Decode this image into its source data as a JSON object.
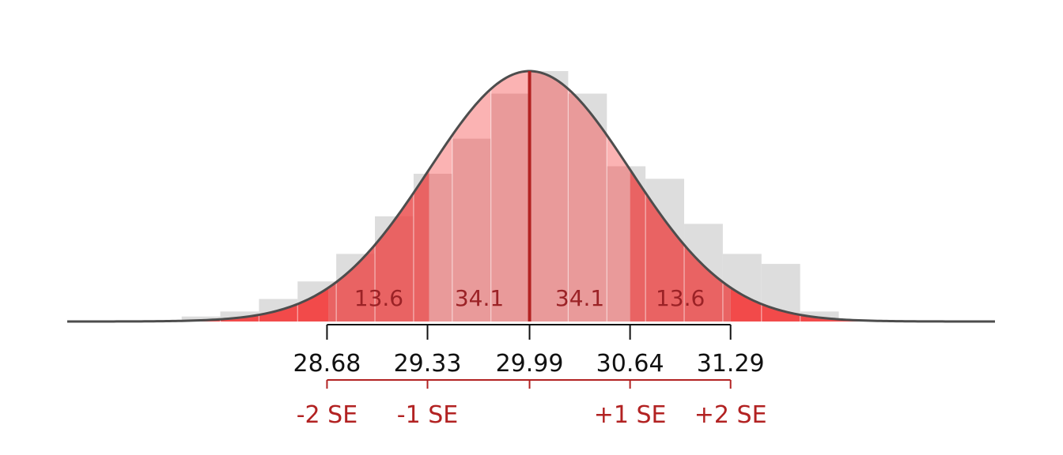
{
  "chart_data": {
    "type": "bar",
    "title": "",
    "xlabel": "",
    "ylabel": "",
    "mean": 29.99,
    "se": 0.65,
    "xlim": [
      27.0,
      33.0
    ],
    "histogram": {
      "bin_width": 0.25,
      "bin_starts": [
        27.74,
        27.99,
        28.24,
        28.49,
        28.74,
        28.99,
        29.24,
        29.49,
        29.74,
        29.99,
        30.24,
        30.49,
        30.74,
        30.99,
        31.24,
        31.49,
        31.74
      ],
      "values": [
        0.02,
        0.04,
        0.09,
        0.16,
        0.27,
        0.42,
        0.59,
        0.73,
        0.91,
        1.0,
        0.91,
        0.62,
        0.57,
        0.39,
        0.27,
        0.23,
        0.04
      ]
    },
    "regions": [
      {
        "label": "13.6",
        "from_se": -2,
        "to_se": -1
      },
      {
        "label": "34.1",
        "from_se": -1,
        "to_se": 0
      },
      {
        "label": "34.1",
        "from_se": 0,
        "to_se": 1
      },
      {
        "label": "13.6",
        "from_se": 1,
        "to_se": 2
      }
    ],
    "ticks": [
      {
        "value": 28.68,
        "label": "28.68"
      },
      {
        "value": 29.33,
        "label": "29.33"
      },
      {
        "value": 29.99,
        "label": "29.99"
      },
      {
        "value": 30.64,
        "label": "30.64"
      },
      {
        "value": 31.29,
        "label": "31.29"
      }
    ],
    "se_labels": [
      {
        "value": 28.68,
        "label": "-2 SE"
      },
      {
        "value": 29.33,
        "label": "-1 SE"
      },
      {
        "value": 29.99,
        "label": ""
      },
      {
        "value": 30.64,
        "label": "+1 SE"
      },
      {
        "value": 31.29,
        "label": "+2 SE"
      }
    ],
    "colors": {
      "hist": "#dddddd",
      "tail": "#f24a4a",
      "outer": "#ee6a6a",
      "inner": "#e99a9a",
      "inner_top": "#fbb3b3",
      "curve": "#4d4d4d",
      "mean_line": "#b22222",
      "se_axis": "#b22222",
      "axis": "#111111"
    }
  }
}
